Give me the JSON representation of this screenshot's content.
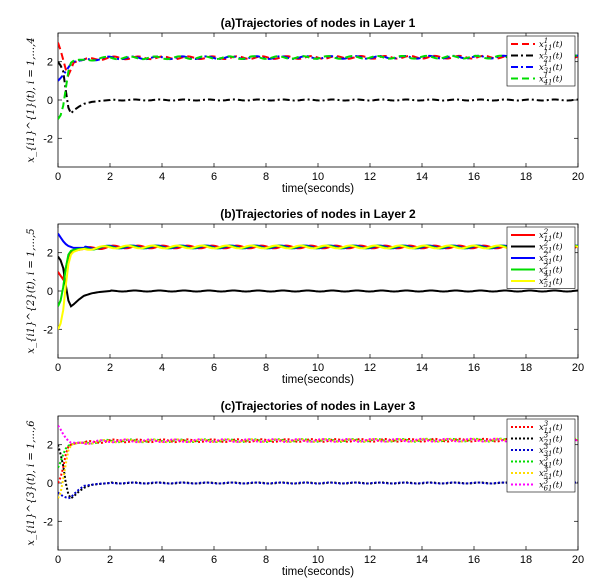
{
  "chart_data": [
    {
      "type": "line",
      "title": "(a)Trajectories of nodes in Layer 1",
      "xlabel": "time(seconds)",
      "ylabel": "x_{i1}^{1}(t), i = 1,...,4",
      "xlim": [
        0,
        20
      ],
      "ylim": [
        -3.5,
        3.5
      ],
      "xticks": [
        "0",
        "2",
        "4",
        "6",
        "8",
        "10",
        "12",
        "14",
        "16",
        "18",
        "20"
      ],
      "yticks": [
        "-2",
        "0",
        "2"
      ],
      "legend_position": "top-right",
      "series": [
        {
          "name": "x_{11}^{1}(t)",
          "color": "#ff0000",
          "dash": "dashed",
          "t": [
            0,
            0.1,
            0.2,
            0.3,
            0.4,
            0.5,
            0.6,
            0.8,
            1,
            1.5,
            2,
            20
          ],
          "y": [
            3.0,
            2.6,
            2.1,
            1.6,
            1.3,
            1.6,
            1.95,
            2.05,
            2.1,
            2.15,
            2.2,
            2.25
          ]
        },
        {
          "name": "x_{21}^{1}(t)",
          "color": "#000000",
          "dash": "dashdot",
          "t": [
            0,
            0.1,
            0.2,
            0.3,
            0.4,
            0.5,
            0.6,
            0.8,
            1,
            1.3,
            1.6,
            2,
            3,
            20
          ],
          "y": [
            2.0,
            1.8,
            1.5,
            0.5,
            -0.4,
            -0.7,
            -0.55,
            -0.35,
            -0.2,
            -0.1,
            -0.05,
            0,
            0,
            0
          ]
        },
        {
          "name": "x_{31}^{1}(t)",
          "color": "#0000ff",
          "dash": "dashdot",
          "t": [
            0,
            0.1,
            0.2,
            0.3,
            0.4,
            0.5,
            0.6,
            0.8,
            1,
            1.5,
            2,
            20
          ],
          "y": [
            1.0,
            1.15,
            1.3,
            1.5,
            1.7,
            1.9,
            2.0,
            2.05,
            2.1,
            2.15,
            2.2,
            2.25
          ]
        },
        {
          "name": "x_{41}^{1}(t)",
          "color": "#00dd00",
          "dash": "dashed",
          "t": [
            0,
            0.1,
            0.2,
            0.3,
            0.4,
            0.5,
            0.6,
            0.8,
            1,
            1.5,
            2,
            20
          ],
          "y": [
            -1.0,
            -0.8,
            -0.3,
            0.6,
            1.5,
            1.95,
            2.05,
            2.1,
            2.1,
            2.15,
            2.2,
            2.25
          ]
        }
      ]
    },
    {
      "type": "line",
      "title": "(b)Trajectories of nodes in Layer 2",
      "xlabel": "time(seconds)",
      "ylabel": "x_{i1}^{2}(t), i = 1,...,5",
      "xlim": [
        0,
        20
      ],
      "ylim": [
        -3.5,
        3.5
      ],
      "xticks": [
        "0",
        "2",
        "4",
        "6",
        "8",
        "10",
        "12",
        "14",
        "16",
        "18",
        "20"
      ],
      "yticks": [
        "-2",
        "0",
        "2"
      ],
      "legend_position": "top-right",
      "series": [
        {
          "name": "x_{11}^{2}(t)",
          "color": "#ff0000",
          "dash": "solid",
          "t": [
            0,
            0.1,
            0.2,
            0.3,
            0.4,
            0.5,
            0.6,
            0.8,
            1,
            1.5,
            2,
            20
          ],
          "y": [
            1.0,
            0.8,
            0.6,
            1.2,
            1.8,
            2.05,
            2.1,
            2.15,
            2.2,
            2.25,
            2.3,
            2.3
          ]
        },
        {
          "name": "x_{21}^{2}(t)",
          "color": "#000000",
          "dash": "solid",
          "t": [
            0,
            0.1,
            0.2,
            0.3,
            0.4,
            0.5,
            0.6,
            0.8,
            1,
            1.3,
            1.6,
            2,
            3,
            20
          ],
          "y": [
            1.8,
            1.6,
            1.2,
            0.3,
            -0.5,
            -0.8,
            -0.7,
            -0.45,
            -0.25,
            -0.12,
            -0.05,
            0,
            0,
            0
          ]
        },
        {
          "name": "x_{31}^{2}(t)",
          "color": "#0000ff",
          "dash": "solid",
          "t": [
            0,
            0.1,
            0.2,
            0.3,
            0.4,
            0.5,
            0.6,
            0.8,
            1,
            1.5,
            2,
            20
          ],
          "y": [
            3.0,
            2.8,
            2.6,
            2.45,
            2.35,
            2.3,
            2.25,
            2.25,
            2.25,
            2.28,
            2.3,
            2.3
          ]
        },
        {
          "name": "x_{41}^{2}(t)",
          "color": "#00dd00",
          "dash": "solid",
          "t": [
            0,
            0.1,
            0.2,
            0.3,
            0.4,
            0.5,
            0.6,
            0.8,
            1,
            1.5,
            2,
            20
          ],
          "y": [
            -0.8,
            -0.5,
            0.2,
            1.2,
            1.9,
            2.1,
            2.15,
            2.2,
            2.2,
            2.25,
            2.3,
            2.3
          ]
        },
        {
          "name": "x_{51}^{2}(t)",
          "color": "#ffff00",
          "dash": "solid",
          "t": [
            0,
            0.1,
            0.2,
            0.3,
            0.4,
            0.5,
            0.6,
            0.8,
            1,
            1.5,
            2,
            20
          ],
          "y": [
            -2.0,
            -1.7,
            -1.0,
            0.3,
            1.4,
            1.9,
            2.05,
            2.15,
            2.2,
            2.25,
            2.3,
            2.3
          ]
        }
      ]
    },
    {
      "type": "line",
      "title": "(c)Trajectories of nodes in Layer 3",
      "xlabel": "time(seconds)",
      "ylabel": "x_{i1}^{3}(t), i = 1,...,6",
      "xlim": [
        0,
        20
      ],
      "ylim": [
        -3.5,
        3.5
      ],
      "xticks": [
        "0",
        "2",
        "4",
        "6",
        "8",
        "10",
        "12",
        "14",
        "16",
        "18",
        "20"
      ],
      "yticks": [
        "-2",
        "0",
        "2"
      ],
      "legend_position": "top-right",
      "series": [
        {
          "name": "x_{11}^{3}(t)",
          "color": "#ff0000",
          "dash": "dotted",
          "t": [
            0,
            0.1,
            0.2,
            0.3,
            0.4,
            0.5,
            0.6,
            0.8,
            1,
            1.5,
            2,
            20
          ],
          "y": [
            0.0,
            0.3,
            0.8,
            1.5,
            1.9,
            2.0,
            2.05,
            2.1,
            2.1,
            2.15,
            2.2,
            2.25
          ]
        },
        {
          "name": "x_{21}^{3}(t)",
          "color": "#000000",
          "dash": "dotted",
          "t": [
            0,
            0.1,
            0.2,
            0.3,
            0.4,
            0.5,
            0.6,
            0.8,
            1,
            1.3,
            1.6,
            2,
            3,
            20
          ],
          "y": [
            2.0,
            1.5,
            0.9,
            0.0,
            -0.6,
            -0.8,
            -0.7,
            -0.45,
            -0.25,
            -0.1,
            -0.05,
            0,
            0,
            0
          ]
        },
        {
          "name": "x_{31}^{3}(t)",
          "color": "#0000cc",
          "dash": "dotted",
          "t": [
            0,
            0.1,
            0.2,
            0.3,
            0.4,
            0.5,
            0.6,
            0.8,
            1,
            1.5,
            2,
            20
          ],
          "y": [
            -0.5,
            -0.6,
            -0.7,
            -0.75,
            -0.8,
            -0.75,
            -0.6,
            -0.35,
            -0.15,
            -0.05,
            0,
            0
          ]
        },
        {
          "name": "x_{41}^{3}(t)",
          "color": "#00dd00",
          "dash": "dotted",
          "t": [
            0,
            0.1,
            0.2,
            0.3,
            0.4,
            0.5,
            0.6,
            0.8,
            1,
            1.5,
            2,
            20
          ],
          "y": [
            0.8,
            1.1,
            1.5,
            1.8,
            1.95,
            2.0,
            2.05,
            2.1,
            2.1,
            2.15,
            2.2,
            2.25
          ]
        },
        {
          "name": "x_{51}^{3}(t)",
          "color": "#ffdd00",
          "dash": "dotted",
          "t": [
            0,
            0.1,
            0.2,
            0.3,
            0.4,
            0.5,
            0.6,
            0.8,
            1,
            1.5,
            2,
            20
          ],
          "y": [
            -0.8,
            -0.5,
            0.2,
            1.0,
            1.7,
            1.95,
            2.05,
            2.1,
            2.1,
            2.15,
            2.2,
            2.25
          ]
        },
        {
          "name": "x_{61}^{3}(t)",
          "color": "#ff00ff",
          "dash": "dotted",
          "t": [
            0,
            0.1,
            0.2,
            0.3,
            0.4,
            0.5,
            0.6,
            0.8,
            1,
            1.5,
            2,
            20
          ],
          "y": [
            3.0,
            2.8,
            2.55,
            2.35,
            2.2,
            2.1,
            2.1,
            2.1,
            2.1,
            2.15,
            2.2,
            2.25
          ]
        }
      ]
    }
  ]
}
